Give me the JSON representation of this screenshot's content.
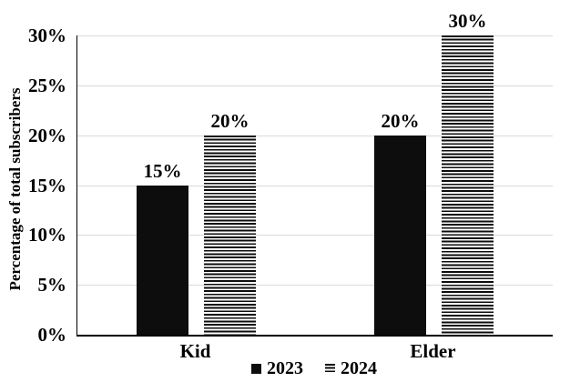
{
  "chart_data": {
    "type": "bar",
    "title": "",
    "categories": [
      "Kid",
      "Elder"
    ],
    "series": [
      {
        "name": "2023",
        "values": [
          15,
          20
        ],
        "labels": [
          "15%",
          "20%"
        ],
        "pattern": "solid"
      },
      {
        "name": "2024",
        "values": [
          20,
          30
        ],
        "labels": [
          "20%",
          "30%"
        ],
        "pattern": "horizontal-stripes"
      }
    ],
    "xlabel": "",
    "ylabel": "Percentage of total subscribers",
    "ylim": [
      0,
      30
    ],
    "yticks": [
      0,
      5,
      10,
      15,
      20,
      25,
      30
    ],
    "ytick_labels": [
      "0%",
      "5%",
      "10%",
      "15%",
      "20%",
      "25%",
      "30%"
    ],
    "grid": true,
    "legend_position": "bottom",
    "colors": {
      "bar": "#0d0d0d",
      "grid": "#d9d9d9",
      "axis": "#000000",
      "background": "#ffffff",
      "text": "#000000"
    }
  }
}
